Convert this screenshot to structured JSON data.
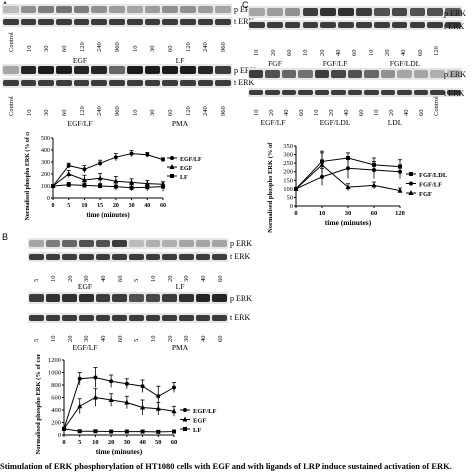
{
  "panels": {
    "A": {
      "label": "A",
      "blot_labels": [
        "p ERK",
        "t ERK",
        "p ERK",
        "t ERK"
      ],
      "lanes_top": [
        "Control",
        "10",
        "30",
        "60",
        "120",
        "240",
        "960",
        "10",
        "30",
        "60",
        "120",
        "240",
        "960"
      ],
      "groups_top": [
        "EGF",
        "LF"
      ],
      "lanes_bottom": [
        "Control",
        "10",
        "30",
        "60",
        "120",
        "240",
        "960",
        "10",
        "30",
        "60",
        "120",
        "240",
        "960"
      ],
      "groups_bottom": [
        "EGF/LF",
        "PMA"
      ]
    },
    "B": {
      "label": "B",
      "blot_labels": [
        "p ERK",
        "t ERK",
        "p ERK",
        "t ERK"
      ],
      "lanes_top": [
        "5",
        "10",
        "20",
        "30",
        "40",
        "60",
        "5",
        "10",
        "20",
        "30",
        "40",
        "60"
      ],
      "groups_top": [
        "EGF",
        "LF"
      ],
      "lanes_bottom": [
        "5",
        "10",
        "20",
        "30",
        "40",
        "60",
        "5",
        "10",
        "20",
        "30",
        "40",
        "60"
      ],
      "groups_bottom": [
        "EGF/LF",
        "PMA"
      ]
    },
    "C": {
      "label": "C",
      "blot_labels": [
        "p ERK",
        "t ERK",
        "p ERK",
        "t ERK"
      ],
      "lanes_top": [
        "10",
        "20",
        "60",
        "10",
        "20",
        "40",
        "60",
        "10",
        "20",
        "40",
        "60",
        "120"
      ],
      "groups_top": [
        "FGF",
        "FGF/LF",
        "FGF/LDL"
      ],
      "lanes_bottom": [
        "10",
        "20",
        "40",
        "60",
        "10",
        "20",
        "40",
        "60",
        "10",
        "20",
        "40",
        "60",
        "Control"
      ],
      "groups_bottom": [
        "EGF/LF",
        "EGF/LDL",
        "LDL"
      ]
    }
  },
  "chart_data": [
    {
      "type": "line",
      "panel": "A",
      "title": "",
      "xlabel": "time (minutes)",
      "ylabel": "Normalised phospho ERK (% of control)",
      "x": [
        0,
        5,
        10,
        15,
        20,
        30,
        40,
        60
      ],
      "x_ticks": [
        "0",
        "5",
        "10",
        "15",
        "20",
        "30",
        "40",
        "60"
      ],
      "y_ticks": [
        0,
        100,
        200,
        300,
        400,
        500
      ],
      "ylim": [
        0,
        500
      ],
      "legend": "right",
      "series": [
        {
          "name": "EGF/LF",
          "marker": "circle",
          "values": [
            100,
            270,
            240,
            290,
            340,
            370,
            360,
            320
          ],
          "errors": [
            10,
            20,
            30,
            25,
            30,
            25,
            20,
            15
          ]
        },
        {
          "name": "EGF",
          "marker": "triangle",
          "values": [
            100,
            200,
            150,
            165,
            140,
            130,
            120,
            115
          ],
          "errors": [
            10,
            30,
            40,
            40,
            40,
            30,
            25,
            20
          ]
        },
        {
          "name": "LF",
          "marker": "square",
          "values": [
            100,
            110,
            105,
            100,
            95,
            85,
            90,
            95
          ],
          "errors": [
            10,
            20,
            20,
            20,
            30,
            25,
            30,
            40
          ]
        }
      ]
    },
    {
      "type": "line",
      "panel": "B",
      "title": "",
      "xlabel": "time (minutes)",
      "ylabel": "Normalised phospho ERK (% of control)",
      "x": [
        0,
        5,
        10,
        20,
        30,
        40,
        50,
        60
      ],
      "x_ticks": [
        "0",
        "5",
        "10",
        "20",
        "30",
        "40",
        "50",
        "60"
      ],
      "y_ticks": [
        0,
        200,
        400,
        600,
        800,
        1000,
        1200
      ],
      "ylim": [
        0,
        1200
      ],
      "legend": "right",
      "series": [
        {
          "name": "EGF/LF",
          "marker": "circle",
          "values": [
            100,
            900,
            920,
            860,
            820,
            780,
            620,
            760
          ],
          "errors": [
            20,
            100,
            160,
            100,
            80,
            100,
            160,
            80
          ]
        },
        {
          "name": "EGF",
          "marker": "triangle",
          "values": [
            100,
            460,
            600,
            560,
            520,
            440,
            420,
            380
          ],
          "errors": [
            20,
            120,
            140,
            100,
            100,
            120,
            100,
            80
          ]
        },
        {
          "name": "LF",
          "marker": "square",
          "values": [
            100,
            60,
            60,
            55,
            55,
            55,
            50,
            55
          ],
          "errors": [
            20,
            20,
            20,
            15,
            15,
            15,
            15,
            15
          ]
        }
      ]
    },
    {
      "type": "line",
      "panel": "C",
      "title": "",
      "xlabel": "time (minutes)",
      "ylabel": "Normalised phospho ERK (% of control)",
      "x": [
        0,
        10,
        30,
        60,
        120
      ],
      "x_ticks": [
        "0",
        "10",
        "30",
        "60",
        "120"
      ],
      "y_ticks": [
        0,
        50,
        100,
        150,
        200,
        250,
        300,
        350
      ],
      "ylim": [
        0,
        350
      ],
      "legend": "right",
      "series": [
        {
          "name": "FGF/LDL",
          "marker": "square",
          "values": [
            100,
            260,
            280,
            240,
            230
          ],
          "errors": [
            5,
            60,
            30,
            40,
            40
          ]
        },
        {
          "name": "FGF/LF",
          "marker": "circle",
          "values": [
            100,
            170,
            220,
            210,
            200
          ],
          "errors": [
            5,
            50,
            60,
            50,
            40
          ]
        },
        {
          "name": "FGF",
          "marker": "triangle",
          "values": [
            100,
            240,
            110,
            120,
            90
          ],
          "errors": [
            5,
            70,
            20,
            20,
            15
          ]
        }
      ]
    }
  ],
  "caption": "Stimulation of ERK phosphorylation of HT1080 cells with EGF and with ligands of LRP induce sustained activation of ERK."
}
